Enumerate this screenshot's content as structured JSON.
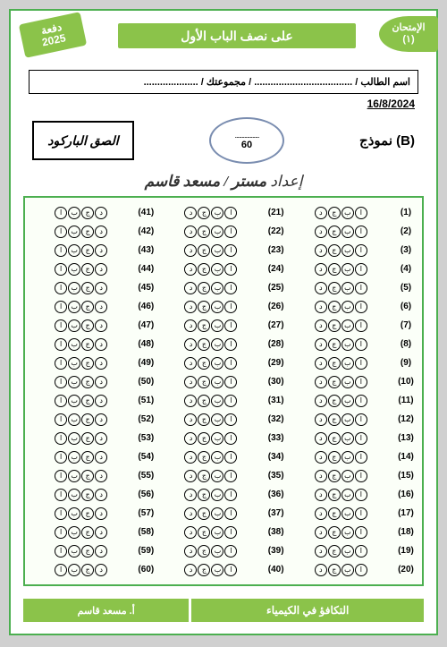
{
  "batch_label": "دفعة",
  "batch_year": "2025",
  "title": "على نصف الباب الأول",
  "exam_label": "الإمتحان",
  "exam_number": "(١)",
  "student_line": "اسم الطالب / .................................... / مجموعتك / ....................",
  "date": "16/8/2024",
  "barcode_label": "الصق الباركود",
  "score_total": "60",
  "model_label": "نموذج (B)",
  "prepared_by_prefix": "إعداد",
  "prepared_by_name": "مستر / مسعد قاسم",
  "footer_teacher": "أ. مسعد قاسم",
  "footer_subject": "التكافؤ في الكيمياء",
  "col1_start": 41,
  "col2_start": 21,
  "col3_start": 1,
  "rows": 20,
  "col1_letters": [
    "ا",
    "ب",
    "ج",
    "د"
  ],
  "col23_letters": [
    "د",
    "ج",
    "ب",
    "ا"
  ],
  "colors": {
    "accent": "#8bc34a",
    "border": "#4caf50",
    "bg": "#ffffff"
  }
}
